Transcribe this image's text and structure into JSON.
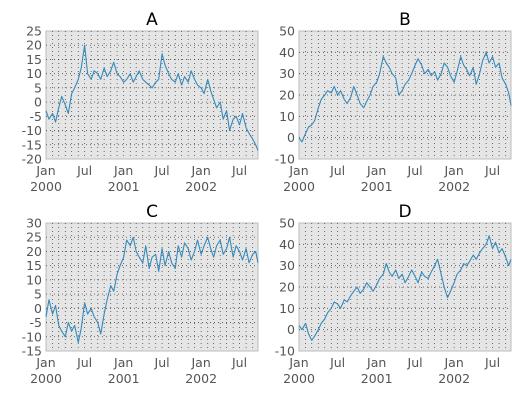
{
  "chart_data": [
    {
      "type": "line",
      "title": "A",
      "xlabel": "",
      "ylabel": "",
      "ylim": [
        -20,
        25
      ],
      "yticks": [
        -20,
        -15,
        -10,
        -5,
        0,
        5,
        10,
        15,
        20,
        25
      ],
      "xlim": [
        "2000-01-01",
        "2002-09-26"
      ],
      "xticks": [
        {
          "date": "2000-01-01",
          "label": "Jan",
          "sub": "2000"
        },
        {
          "date": "2000-07-01",
          "label": "Jul",
          "sub": ""
        },
        {
          "date": "2001-01-01",
          "label": "Jan",
          "sub": "2001"
        },
        {
          "date": "2001-07-01",
          "label": "Jul",
          "sub": ""
        },
        {
          "date": "2002-01-01",
          "label": "Jan",
          "sub": "2002"
        },
        {
          "date": "2002-07-01",
          "label": "Jul",
          "sub": ""
        }
      ],
      "grid": true,
      "color": "#348abd",
      "series": [
        {
          "x": [
            "2000-01-01",
            "2000-01-15",
            "2000-02-01",
            "2000-02-15",
            "2000-03-01",
            "2000-03-15",
            "2000-04-01",
            "2000-04-15",
            "2000-05-01",
            "2000-05-15",
            "2000-06-01",
            "2000-06-15",
            "2000-07-01",
            "2000-07-15",
            "2000-08-01",
            "2000-08-15",
            "2000-09-01",
            "2000-09-15",
            "2000-10-01",
            "2000-10-15",
            "2000-11-01",
            "2000-11-15",
            "2000-12-01",
            "2000-12-15",
            "2001-01-01",
            "2001-01-15",
            "2001-02-01",
            "2001-02-15",
            "2001-03-01",
            "2001-03-15",
            "2001-04-01",
            "2001-04-15",
            "2001-05-01",
            "2001-05-15",
            "2001-06-01",
            "2001-06-15",
            "2001-07-01",
            "2001-07-15",
            "2001-08-01",
            "2001-08-15",
            "2001-09-01",
            "2001-09-15",
            "2001-10-01",
            "2001-10-15",
            "2001-11-01",
            "2001-11-15",
            "2001-12-01",
            "2001-12-15",
            "2002-01-01",
            "2002-01-15",
            "2002-02-01",
            "2002-02-15",
            "2002-03-01",
            "2002-03-15",
            "2002-04-01",
            "2002-04-15",
            "2002-05-01",
            "2002-05-15",
            "2002-06-01",
            "2002-06-15",
            "2002-07-01",
            "2002-07-15",
            "2002-08-01",
            "2002-08-15",
            "2002-09-01",
            "2002-09-15",
            "2002-09-26"
          ],
          "y": [
            -3,
            -6,
            -4,
            -7,
            -2,
            2,
            -1,
            -4,
            3,
            5,
            8,
            12,
            20,
            10,
            8,
            11,
            10,
            8,
            12,
            9,
            11,
            14,
            10,
            9,
            7,
            8,
            10,
            7,
            9,
            11,
            8,
            7,
            6,
            5,
            7,
            8,
            17,
            13,
            10,
            8,
            7,
            10,
            6,
            9,
            7,
            11,
            8,
            6,
            5,
            3,
            8,
            4,
            1,
            -2,
            0,
            -6,
            -3,
            -10,
            -6,
            -5,
            -8,
            -4,
            -9,
            -11,
            -13,
            -15,
            -17
          ]
        }
      ]
    },
    {
      "type": "line",
      "title": "B",
      "xlabel": "",
      "ylabel": "",
      "ylim": [
        -10,
        50
      ],
      "yticks": [
        -10,
        0,
        10,
        20,
        30,
        40,
        50
      ],
      "xlim": [
        "2000-01-01",
        "2002-09-26"
      ],
      "xticks": [
        {
          "date": "2000-01-01",
          "label": "Jan",
          "sub": "2000"
        },
        {
          "date": "2000-07-01",
          "label": "Jul",
          "sub": ""
        },
        {
          "date": "2001-01-01",
          "label": "Jan",
          "sub": "2001"
        },
        {
          "date": "2001-07-01",
          "label": "Jul",
          "sub": ""
        },
        {
          "date": "2002-01-01",
          "label": "Jan",
          "sub": "2002"
        },
        {
          "date": "2002-07-01",
          "label": "Jul",
          "sub": ""
        }
      ],
      "grid": true,
      "color": "#348abd",
      "series": [
        {
          "x": [
            "2000-01-01",
            "2000-01-15",
            "2000-02-01",
            "2000-02-15",
            "2000-03-01",
            "2000-03-15",
            "2000-04-01",
            "2000-04-15",
            "2000-05-01",
            "2000-05-15",
            "2000-06-01",
            "2000-06-15",
            "2000-07-01",
            "2000-07-15",
            "2000-08-01",
            "2000-08-15",
            "2000-09-01",
            "2000-09-15",
            "2000-10-01",
            "2000-10-15",
            "2000-11-01",
            "2000-11-15",
            "2000-12-01",
            "2000-12-15",
            "2001-01-01",
            "2001-01-15",
            "2001-02-01",
            "2001-02-15",
            "2001-03-01",
            "2001-03-15",
            "2001-04-01",
            "2001-04-15",
            "2001-05-01",
            "2001-05-15",
            "2001-06-01",
            "2001-06-15",
            "2001-07-01",
            "2001-07-15",
            "2001-08-01",
            "2001-08-15",
            "2001-09-01",
            "2001-09-15",
            "2001-10-01",
            "2001-10-15",
            "2001-11-01",
            "2001-11-15",
            "2001-12-01",
            "2001-12-15",
            "2002-01-01",
            "2002-01-15",
            "2002-02-01",
            "2002-02-15",
            "2002-03-01",
            "2002-03-15",
            "2002-04-01",
            "2002-04-15",
            "2002-05-01",
            "2002-05-15",
            "2002-06-01",
            "2002-06-15",
            "2002-07-01",
            "2002-07-15",
            "2002-08-01",
            "2002-08-15",
            "2002-09-01",
            "2002-09-15",
            "2002-09-26"
          ],
          "y": [
            0,
            -2,
            2,
            5,
            6,
            8,
            14,
            18,
            20,
            22,
            21,
            24,
            20,
            22,
            18,
            16,
            19,
            24,
            20,
            16,
            14,
            17,
            20,
            24,
            26,
            30,
            38,
            35,
            33,
            30,
            28,
            20,
            22,
            25,
            27,
            30,
            34,
            37,
            34,
            30,
            32,
            29,
            31,
            27,
            30,
            35,
            33,
            29,
            26,
            31,
            38,
            34,
            32,
            29,
            33,
            25,
            30,
            36,
            40,
            35,
            38,
            33,
            35,
            28,
            25,
            21,
            15
          ]
        }
      ]
    },
    {
      "type": "line",
      "title": "C",
      "xlabel": "",
      "ylabel": "",
      "ylim": [
        -15,
        30
      ],
      "yticks": [
        -15,
        -10,
        -5,
        0,
        5,
        10,
        15,
        20,
        25,
        30
      ],
      "xlim": [
        "2000-01-01",
        "2002-09-26"
      ],
      "xticks": [
        {
          "date": "2000-01-01",
          "label": "Jan",
          "sub": "2000"
        },
        {
          "date": "2000-07-01",
          "label": "Jul",
          "sub": ""
        },
        {
          "date": "2001-01-01",
          "label": "Jan",
          "sub": "2001"
        },
        {
          "date": "2001-07-01",
          "label": "Jul",
          "sub": ""
        },
        {
          "date": "2002-01-01",
          "label": "Jan",
          "sub": "2002"
        },
        {
          "date": "2002-07-01",
          "label": "Jul",
          "sub": ""
        }
      ],
      "grid": true,
      "color": "#348abd",
      "series": [
        {
          "x": [
            "2000-01-01",
            "2000-01-15",
            "2000-02-01",
            "2000-02-15",
            "2000-03-01",
            "2000-03-15",
            "2000-04-01",
            "2000-04-15",
            "2000-05-01",
            "2000-05-15",
            "2000-06-01",
            "2000-06-15",
            "2000-07-01",
            "2000-07-15",
            "2000-08-01",
            "2000-08-15",
            "2000-09-01",
            "2000-09-15",
            "2000-10-01",
            "2000-10-15",
            "2000-11-01",
            "2000-11-15",
            "2000-12-01",
            "2000-12-15",
            "2001-01-01",
            "2001-01-15",
            "2001-02-01",
            "2001-02-15",
            "2001-03-01",
            "2001-03-15",
            "2001-04-01",
            "2001-04-15",
            "2001-05-01",
            "2001-05-15",
            "2001-06-01",
            "2001-06-15",
            "2001-07-01",
            "2001-07-15",
            "2001-08-01",
            "2001-08-15",
            "2001-09-01",
            "2001-09-15",
            "2001-10-01",
            "2001-10-15",
            "2001-11-01",
            "2001-11-15",
            "2001-12-01",
            "2001-12-15",
            "2002-01-01",
            "2002-01-15",
            "2002-02-01",
            "2002-02-15",
            "2002-03-01",
            "2002-03-15",
            "2002-04-01",
            "2002-04-15",
            "2002-05-01",
            "2002-05-15",
            "2002-06-01",
            "2002-06-15",
            "2002-07-01",
            "2002-07-15",
            "2002-08-01",
            "2002-08-15",
            "2002-09-01",
            "2002-09-15",
            "2002-09-26"
          ],
          "y": [
            -3,
            3,
            -2,
            1,
            -6,
            -8,
            -10,
            -5,
            -8,
            -6,
            -12,
            -7,
            2,
            -2,
            0,
            -3,
            -5,
            -9,
            -2,
            3,
            8,
            6,
            12,
            15,
            18,
            24,
            22,
            25,
            20,
            18,
            16,
            22,
            14,
            18,
            19,
            13,
            21,
            15,
            20,
            16,
            14,
            22,
            18,
            23,
            21,
            17,
            20,
            24,
            19,
            22,
            25,
            21,
            18,
            22,
            24,
            19,
            21,
            25,
            18,
            22,
            20,
            17,
            21,
            16,
            19,
            20,
            16
          ]
        }
      ]
    },
    {
      "type": "line",
      "title": "D",
      "xlabel": "",
      "ylabel": "",
      "ylim": [
        -10,
        50
      ],
      "yticks": [
        -10,
        0,
        10,
        20,
        30,
        40,
        50
      ],
      "xlim": [
        "2000-01-01",
        "2002-09-26"
      ],
      "xticks": [
        {
          "date": "2000-01-01",
          "label": "Jan",
          "sub": "2000"
        },
        {
          "date": "2000-07-01",
          "label": "Jul",
          "sub": ""
        },
        {
          "date": "2001-01-01",
          "label": "Jan",
          "sub": "2001"
        },
        {
          "date": "2001-07-01",
          "label": "Jul",
          "sub": ""
        },
        {
          "date": "2002-01-01",
          "label": "Jan",
          "sub": "2002"
        },
        {
          "date": "2002-07-01",
          "label": "Jul",
          "sub": ""
        }
      ],
      "grid": true,
      "color": "#348abd",
      "series": [
        {
          "x": [
            "2000-01-01",
            "2000-01-15",
            "2000-02-01",
            "2000-02-15",
            "2000-03-01",
            "2000-03-15",
            "2000-04-01",
            "2000-04-15",
            "2000-05-01",
            "2000-05-15",
            "2000-06-01",
            "2000-06-15",
            "2000-07-01",
            "2000-07-15",
            "2000-08-01",
            "2000-08-15",
            "2000-09-01",
            "2000-09-15",
            "2000-10-01",
            "2000-10-15",
            "2000-11-01",
            "2000-11-15",
            "2000-12-01",
            "2000-12-15",
            "2001-01-01",
            "2001-01-15",
            "2001-02-01",
            "2001-02-15",
            "2001-03-01",
            "2001-03-15",
            "2001-04-01",
            "2001-04-15",
            "2001-05-01",
            "2001-05-15",
            "2001-06-01",
            "2001-06-15",
            "2001-07-01",
            "2001-07-15",
            "2001-08-01",
            "2001-08-15",
            "2001-09-01",
            "2001-09-15",
            "2001-10-01",
            "2001-10-15",
            "2001-11-01",
            "2001-11-15",
            "2001-12-01",
            "2001-12-15",
            "2002-01-01",
            "2002-01-15",
            "2002-02-01",
            "2002-02-15",
            "2002-03-01",
            "2002-03-15",
            "2002-04-01",
            "2002-04-15",
            "2002-05-01",
            "2002-05-15",
            "2002-06-01",
            "2002-06-15",
            "2002-07-01",
            "2002-07-15",
            "2002-08-01",
            "2002-08-15",
            "2002-09-01",
            "2002-09-15",
            "2002-09-26"
          ],
          "y": [
            2,
            0,
            3,
            -2,
            -5,
            -3,
            0,
            3,
            5,
            8,
            10,
            13,
            12,
            10,
            14,
            13,
            16,
            18,
            20,
            17,
            19,
            22,
            20,
            18,
            21,
            24,
            26,
            31,
            27,
            25,
            28,
            24,
            26,
            22,
            25,
            28,
            25,
            22,
            27,
            25,
            24,
            27,
            30,
            33,
            26,
            20,
            15,
            18,
            22,
            26,
            28,
            31,
            30,
            32,
            35,
            33,
            36,
            38,
            40,
            44,
            38,
            41,
            36,
            38,
            34,
            30,
            33
          ]
        }
      ]
    }
  ]
}
